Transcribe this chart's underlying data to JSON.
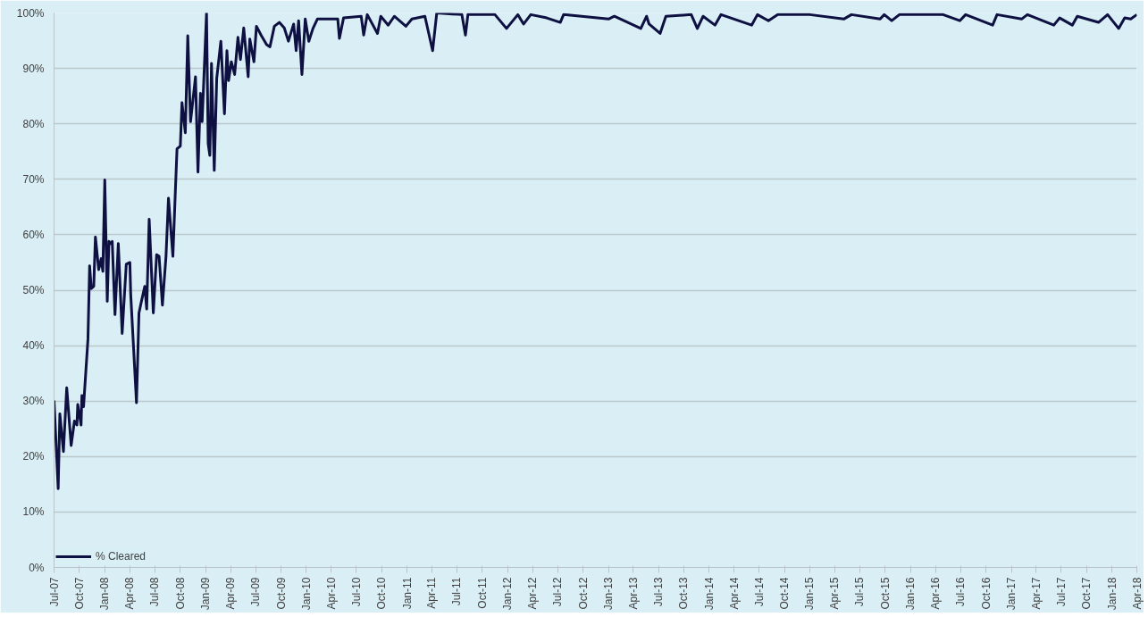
{
  "chart_data": {
    "type": "line",
    "line_style": "solid",
    "marker": "none",
    "grid": "y",
    "legend": "bottom left",
    "x": [
      "2007-07-01",
      "2007-07-16",
      "2007-07-22",
      "2007-08-04",
      "2007-08-16",
      "2007-09-01",
      "2007-09-13",
      "2007-09-22",
      "2007-09-25",
      "2007-10-07",
      "2007-10-10",
      "2007-10-16",
      "2007-11-01",
      "2007-11-07",
      "2007-11-13",
      "2007-11-22",
      "2007-11-28",
      "2007-12-10",
      "2007-12-19",
      "2007-12-25",
      "2008-01-01",
      "2008-01-10",
      "2008-01-16",
      "2008-01-22",
      "2008-01-28",
      "2008-02-07",
      "2008-02-19",
      "2008-03-04",
      "2008-03-19",
      "2008-04-01",
      "2008-04-04",
      "2008-04-25",
      "2008-05-04",
      "2008-05-13",
      "2008-05-25",
      "2008-06-01",
      "2008-06-10",
      "2008-06-25",
      "2008-07-07",
      "2008-07-16",
      "2008-07-28",
      "2008-08-10",
      "2008-08-19",
      "2008-09-04",
      "2008-09-13",
      "2008-09-19",
      "2008-10-01",
      "2008-10-07",
      "2008-10-19",
      "2008-10-28",
      "2008-11-07",
      "2008-11-25",
      "2008-12-04",
      "2008-12-13",
      "2008-12-19",
      "2009-01-04",
      "2009-01-10",
      "2009-01-16",
      "2009-01-22",
      "2009-02-01",
      "2009-02-10",
      "2009-02-25",
      "2009-03-10",
      "2009-03-19",
      "2009-03-25",
      "2009-04-04",
      "2009-04-16",
      "2009-04-28",
      "2009-05-07",
      "2009-05-19",
      "2009-06-04",
      "2009-06-10",
      "2009-06-25",
      "2009-07-04",
      "2009-07-22",
      "2009-08-10",
      "2009-08-22",
      "2009-09-07",
      "2009-09-25",
      "2009-10-13",
      "2009-10-28",
      "2009-11-16",
      "2009-11-25",
      "2009-12-04",
      "2009-12-16",
      "2009-12-28",
      "2010-01-10",
      "2010-01-25",
      "2010-02-10",
      "2010-04-25",
      "2010-05-01",
      "2010-05-16",
      "2010-07-19",
      "2010-07-28",
      "2010-08-10",
      "2010-09-16",
      "2010-09-28",
      "2010-10-25",
      "2010-11-16",
      "2010-12-28",
      "2011-01-19",
      "2011-03-07",
      "2011-04-04",
      "2011-04-19",
      "2011-07-19",
      "2011-08-01",
      "2011-08-10",
      "2011-11-16",
      "2011-12-28",
      "2012-02-07",
      "2012-02-28",
      "2012-03-25",
      "2012-05-22",
      "2012-07-10",
      "2012-07-22",
      "2013-01-01",
      "2013-01-22",
      "2013-04-28",
      "2013-05-19",
      "2013-05-28",
      "2013-07-07",
      "2013-07-28",
      "2013-10-28",
      "2013-11-19",
      "2013-12-10",
      "2014-01-22",
      "2014-02-13",
      "2014-06-04",
      "2014-06-25",
      "2014-08-04",
      "2014-09-07",
      "2015-01-01",
      "2015-05-04",
      "2015-06-01",
      "2015-09-13",
      "2015-09-28",
      "2015-10-25",
      "2015-11-22",
      "2016-04-28",
      "2016-06-28",
      "2016-07-19",
      "2016-10-25",
      "2016-11-10",
      "2017-02-07",
      "2017-02-28",
      "2017-06-04",
      "2017-06-25",
      "2017-08-10",
      "2017-08-28",
      "2017-11-13",
      "2017-12-16",
      "2018-01-25",
      "2018-02-16",
      "2018-03-10",
      "2018-04-01"
    ],
    "series": [
      {
        "name": "% Cleared",
        "color": "#0d1040",
        "values": [
          30.1,
          14.2,
          27.7,
          20.9,
          32.4,
          22,
          26.4,
          25.7,
          29.4,
          25.7,
          31,
          29,
          41.2,
          54.4,
          50.3,
          50.7,
          59.6,
          53.7,
          55.7,
          53.4,
          69.9,
          48,
          58.8,
          58.4,
          58.8,
          45.6,
          58.4,
          42.2,
          54.7,
          55,
          49.3,
          29.7,
          45.9,
          48,
          50.7,
          46.6,
          62.8,
          45.9,
          56.4,
          56.1,
          47.3,
          56.1,
          66.6,
          56.1,
          67.9,
          75.5,
          76,
          83.8,
          78.4,
          95.9,
          80.4,
          88.5,
          71.3,
          85.5,
          80.4,
          100,
          76.4,
          74.3,
          90.9,
          71.6,
          88.2,
          94.9,
          81.8,
          93.2,
          87.8,
          91.2,
          88.9,
          95.6,
          91.6,
          97.3,
          88.5,
          95.3,
          91.2,
          97.6,
          95.9,
          94.3,
          93.9,
          97.6,
          98.3,
          97.3,
          94.9,
          98,
          93.2,
          98.6,
          88.9,
          98.9,
          94.9,
          97.2,
          98.9,
          98.9,
          95.4,
          99.1,
          99.4,
          96,
          99.7,
          96.3,
          99.4,
          97.8,
          99.4,
          97.6,
          98.9,
          99.4,
          93.2,
          100,
          99.7,
          96,
          99.7,
          99.7,
          97.2,
          99.7,
          98,
          99.7,
          99.1,
          98.3,
          99.7,
          98.9,
          99.4,
          97.2,
          99.4,
          98,
          96.3,
          99.4,
          99.7,
          97.2,
          99.4,
          97.8,
          99.7,
          97.8,
          99.7,
          98.6,
          99.7,
          99.7,
          98.9,
          99.7,
          98.9,
          99.7,
          98.6,
          99.7,
          99.7,
          98.6,
          99.7,
          97.8,
          99.7,
          98.9,
          99.7,
          97.8,
          99.1,
          97.8,
          99.4,
          98.3,
          99.7,
          97.2,
          99.1,
          98.9,
          99.7
        ]
      }
    ],
    "ylim": [
      0,
      100
    ],
    "yticks": [
      {
        "value": 0,
        "label": "0%"
      },
      {
        "value": 10,
        "label": "10%"
      },
      {
        "value": 20,
        "label": "20%"
      },
      {
        "value": 30,
        "label": "30%"
      },
      {
        "value": 40,
        "label": "40%"
      },
      {
        "value": 50,
        "label": "50%"
      },
      {
        "value": 60,
        "label": "60%"
      },
      {
        "value": 70,
        "label": "70%"
      },
      {
        "value": 80,
        "label": "80%"
      },
      {
        "value": 90,
        "label": "90%"
      },
      {
        "value": 100,
        "label": "100%"
      }
    ],
    "xlim": [
      "2007-07-01",
      "2018-04-01"
    ],
    "xticks": [
      {
        "value": "2007-07-01",
        "label": "Jul-07"
      },
      {
        "value": "2007-10-01",
        "label": "Oct-07"
      },
      {
        "value": "2008-01-01",
        "label": "Jan-08"
      },
      {
        "value": "2008-04-01",
        "label": "Apr-08"
      },
      {
        "value": "2008-07-01",
        "label": "Jul-08"
      },
      {
        "value": "2008-10-01",
        "label": "Oct-08"
      },
      {
        "value": "2009-01-01",
        "label": "Jan-09"
      },
      {
        "value": "2009-04-01",
        "label": "Apr-09"
      },
      {
        "value": "2009-07-01",
        "label": "Jul-09"
      },
      {
        "value": "2009-10-01",
        "label": "Oct-09"
      },
      {
        "value": "2010-01-01",
        "label": "Jan-10"
      },
      {
        "value": "2010-04-01",
        "label": "Apr-10"
      },
      {
        "value": "2010-07-01",
        "label": "Jul-10"
      },
      {
        "value": "2010-10-01",
        "label": "Oct-10"
      },
      {
        "value": "2011-01-01",
        "label": "Jan-11"
      },
      {
        "value": "2011-04-01",
        "label": "Apr-11"
      },
      {
        "value": "2011-07-01",
        "label": "Jul-11"
      },
      {
        "value": "2011-10-01",
        "label": "Oct-11"
      },
      {
        "value": "2012-01-01",
        "label": "Jan-12"
      },
      {
        "value": "2012-04-01",
        "label": "Apr-12"
      },
      {
        "value": "2012-07-01",
        "label": "Jul-12"
      },
      {
        "value": "2012-10-01",
        "label": "Oct-12"
      },
      {
        "value": "2013-01-01",
        "label": "Jan-13"
      },
      {
        "value": "2013-04-01",
        "label": "Apr-13"
      },
      {
        "value": "2013-07-01",
        "label": "Jul-13"
      },
      {
        "value": "2013-10-01",
        "label": "Oct-13"
      },
      {
        "value": "2014-01-01",
        "label": "Jan-14"
      },
      {
        "value": "2014-04-01",
        "label": "Apr-14"
      },
      {
        "value": "2014-07-01",
        "label": "Jul-14"
      },
      {
        "value": "2014-10-01",
        "label": "Oct-14"
      },
      {
        "value": "2015-01-01",
        "label": "Jan-15"
      },
      {
        "value": "2015-04-01",
        "label": "Apr-15"
      },
      {
        "value": "2015-07-01",
        "label": "Jul-15"
      },
      {
        "value": "2015-10-01",
        "label": "Oct-15"
      },
      {
        "value": "2016-01-01",
        "label": "Jan-16"
      },
      {
        "value": "2016-04-01",
        "label": "Apr-16"
      },
      {
        "value": "2016-07-01",
        "label": "Jul-16"
      },
      {
        "value": "2016-10-01",
        "label": "Oct-16"
      },
      {
        "value": "2017-01-01",
        "label": "Jan-17"
      },
      {
        "value": "2017-04-01",
        "label": "Apr-17"
      },
      {
        "value": "2017-07-01",
        "label": "Jul-17"
      },
      {
        "value": "2017-10-01",
        "label": "Oct-17"
      },
      {
        "value": "2018-01-01",
        "label": "Jan-18"
      },
      {
        "value": "2018-04-01",
        "label": "Apr-18"
      }
    ]
  }
}
